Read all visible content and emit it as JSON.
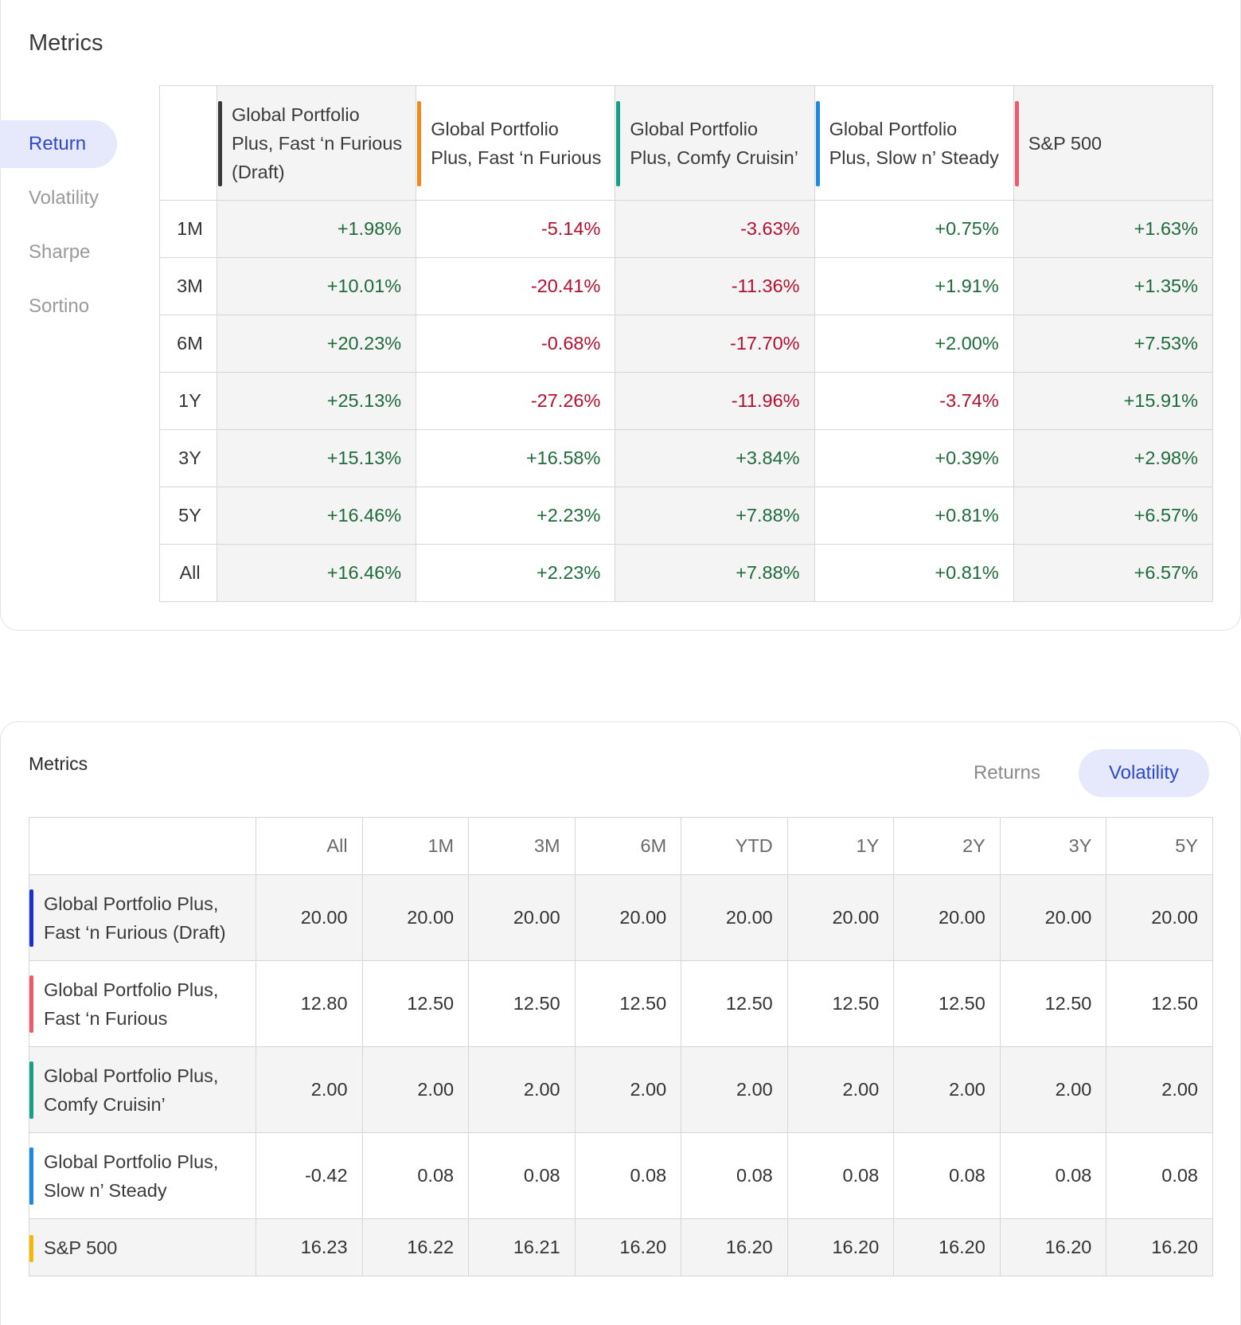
{
  "top": {
    "title": "Metrics",
    "nav": [
      "Return",
      "Volatility",
      "Sharpe",
      "Sortino"
    ],
    "columns": [
      {
        "name": "Global Portfolio Plus, Fast ‘n Furious (Draft)",
        "color": "#3a3a3a"
      },
      {
        "name": "Global Portfolio Plus, Fast ‘n Furious",
        "color": "#f08a1c"
      },
      {
        "name": "Global Portfolio Plus, Comfy Cruisin’",
        "color": "#16a085"
      },
      {
        "name": "Global Portfolio Plus, Slow n’ Steady",
        "color": "#1e88e5"
      },
      {
        "name": "S&P 500",
        "color": "#ef5a6a"
      }
    ],
    "rows": [
      {
        "label": "1M",
        "values": [
          "+1.98%",
          "-5.14%",
          "-3.63%",
          "+0.75%",
          "+1.63%"
        ]
      },
      {
        "label": "3M",
        "values": [
          "+10.01%",
          "-20.41%",
          "-11.36%",
          "+1.91%",
          "+1.35%"
        ]
      },
      {
        "label": "6M",
        "values": [
          "+20.23%",
          "-0.68%",
          "-17.70%",
          "+2.00%",
          "+7.53%"
        ]
      },
      {
        "label": "1Y",
        "values": [
          "+25.13%",
          "-27.26%",
          "-11.96%",
          "-3.74%",
          "+15.91%"
        ]
      },
      {
        "label": "3Y",
        "values": [
          "+15.13%",
          "+16.58%",
          "+3.84%",
          "+0.39%",
          "+2.98%"
        ]
      },
      {
        "label": "5Y",
        "values": [
          "+16.46%",
          "+2.23%",
          "+7.88%",
          "+0.81%",
          "+6.57%"
        ]
      },
      {
        "label": "All",
        "values": [
          "+16.46%",
          "+2.23%",
          "+7.88%",
          "+0.81%",
          "+6.57%"
        ]
      }
    ]
  },
  "bottom": {
    "title": "Metrics",
    "toggle": [
      "Returns",
      "Volatility"
    ],
    "columns": [
      "All",
      "1M",
      "3M",
      "6M",
      "YTD",
      "1Y",
      "2Y",
      "3Y",
      "5Y"
    ],
    "rows": [
      {
        "name_line1": "Global Portfolio Plus,",
        "name_line2": "Fast ‘n Furious (Draft)",
        "color": "#1a2fd6",
        "values": [
          "20.00",
          "20.00",
          "20.00",
          "20.00",
          "20.00",
          "20.00",
          "20.00",
          "20.00",
          "20.00"
        ]
      },
      {
        "name_line1": "Global Portfolio Plus,",
        "name_line2": "Fast ‘n Furious",
        "color": "#ef5a6a",
        "values": [
          "12.80",
          "12.50",
          "12.50",
          "12.50",
          "12.50",
          "12.50",
          "12.50",
          "12.50",
          "12.50"
        ]
      },
      {
        "name_line1": "Global Portfolio Plus,",
        "name_line2": "Comfy Cruisin’",
        "color": "#16a085",
        "values": [
          "2.00",
          "2.00",
          "2.00",
          "2.00",
          "2.00",
          "2.00",
          "2.00",
          "2.00",
          "2.00"
        ]
      },
      {
        "name_line1": "Global Portfolio Plus,",
        "name_line2": "Slow n’ Steady",
        "color": "#1e88e5",
        "values": [
          "-0.42",
          "0.08",
          "0.08",
          "0.08",
          "0.08",
          "0.08",
          "0.08",
          "0.08",
          "0.08"
        ]
      },
      {
        "name_line1": "S&P 500",
        "name_line2": "",
        "color": "#f5b800",
        "values": [
          "16.23",
          "16.22",
          "16.21",
          "16.20",
          "16.20",
          "16.20",
          "16.20",
          "16.20",
          "16.20"
        ]
      }
    ]
  }
}
